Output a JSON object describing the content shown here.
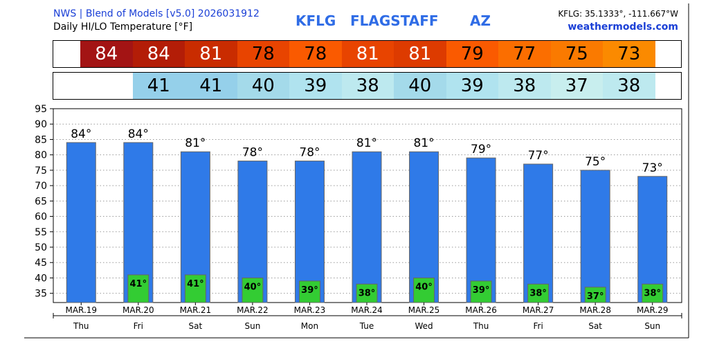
{
  "header": {
    "source": "NWS | Blend of Models [v5.0] 2026031912",
    "subtitle": "Daily HI/LO Temperature [°F]",
    "station": "KFLG",
    "city": "FLAGSTAFF",
    "state": "AZ",
    "coords": "KFLG: 35.1333°, -111.667°W",
    "site": "weathermodels.com"
  },
  "chart_data": {
    "type": "bar",
    "title": "Daily HI/LO Temperature [°F]",
    "categories": [
      "MAR.19",
      "MAR.20",
      "MAR.21",
      "MAR.22",
      "MAR.23",
      "MAR.24",
      "MAR.25",
      "MAR.26",
      "MAR.27",
      "MAR.28",
      "MAR.29"
    ],
    "weekdays": [
      "Thu",
      "Fri",
      "Sat",
      "Sun",
      "Mon",
      "Tue",
      "Wed",
      "Thu",
      "Fri",
      "Sat",
      "Sun"
    ],
    "series": [
      {
        "values": [
          84,
          84,
          81,
          78,
          78,
          81,
          81,
          79,
          77,
          75,
          73
        ],
        "color": "#2f7ae8"
      },
      {
        "values": [
          null,
          41,
          41,
          40,
          39,
          38,
          40,
          39,
          38,
          37,
          38
        ],
        "color": "#33cc33"
      }
    ],
    "degree_suffix": "°",
    "ylim": [
      32,
      95
    ],
    "yticks": [
      35,
      40,
      45,
      50,
      55,
      60,
      65,
      70,
      75,
      80,
      85,
      90,
      95
    ],
    "grid": true,
    "hi_strip_colors": [
      "#a31414",
      "#b31d07",
      "#c92c00",
      "#e84400",
      "#fa5a00",
      "#e84400",
      "#dd3b00",
      "#fa5a00",
      "#fb6e00",
      "#fa7a00",
      "#fb8a00"
    ],
    "lo_strip_colors": [
      null,
      "#95d0ea",
      "#95d0ea",
      "#a4daea",
      "#b0e3ef",
      "#bde9ef",
      "#a4daea",
      "#b0e3ef",
      "#bde9ef",
      "#c8eeee",
      "#bde9ef"
    ],
    "hi_strip_text_colors": [
      "#ffffff",
      "#ffffff",
      "#ffffff",
      "#000000",
      "#000000",
      "#ffffff",
      "#ffffff",
      "#000000",
      "#000000",
      "#000000",
      "#000000"
    ]
  }
}
